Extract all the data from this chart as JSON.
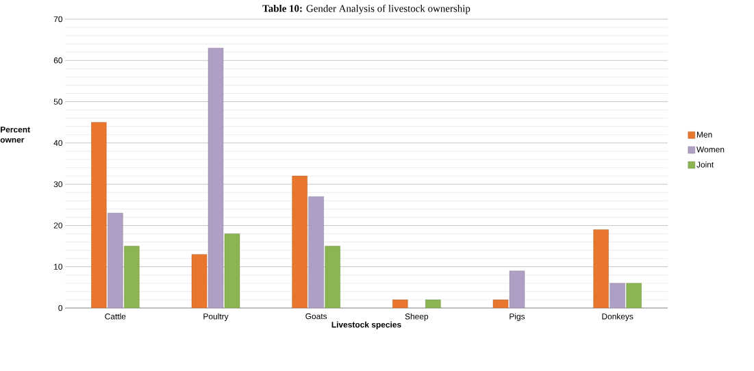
{
  "chart_data": {
    "type": "bar",
    "title": "**Table 10:** Gender Analysis of livestock ownership",
    "xlabel": "Livestock species",
    "ylabel": "Percent owner",
    "categories": [
      "Cattle",
      "Poultry",
      "Goats",
      "Sheep",
      "Pigs",
      "Donkeys"
    ],
    "series": [
      {
        "name": "Men",
        "color": "#e8762d",
        "values": [
          45,
          13,
          32,
          2,
          2,
          19
        ]
      },
      {
        "name": "Women",
        "color": "#b09fc4",
        "values": [
          23,
          63,
          27,
          null,
          9,
          6
        ]
      },
      {
        "name": "Joint",
        "color": "#8cb552",
        "values": [
          15,
          18,
          15,
          2,
          null,
          6
        ]
      }
    ],
    "ylim": [
      0,
      70
    ],
    "yticks": [
      0,
      10,
      20,
      30,
      40,
      50,
      60,
      70
    ],
    "grid": "y",
    "legend": "right"
  }
}
